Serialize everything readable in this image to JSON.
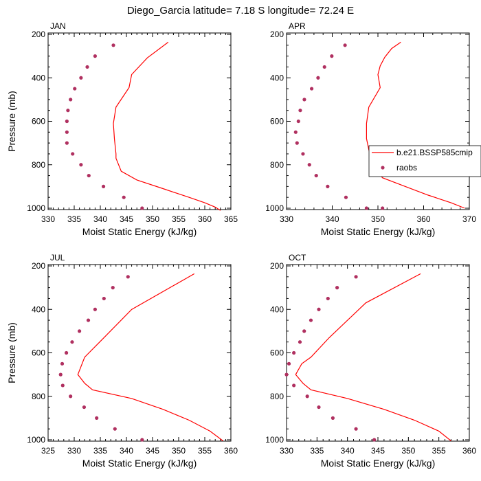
{
  "title": "Diego_Garcia  latitude= 7.18 S longitude= 72.24 E",
  "legend": {
    "line_label": "b.e21.BSSP585cmip",
    "dot_label": "raobs",
    "placement": "right side of APR panel"
  },
  "colors": {
    "model_line": "#ff0000",
    "raobs_dot": "#b03060",
    "axes": "#000000",
    "background": "#ffffff"
  },
  "chart_data": [
    {
      "type": "line",
      "title": "JAN",
      "xlabel": "Moist Static Energy (kJ/kg)",
      "ylabel": "Pressure (mb)",
      "xlim": [
        330,
        365
      ],
      "xticks": [
        330,
        335,
        340,
        345,
        350,
        355,
        360,
        365
      ],
      "ylim": [
        1000,
        200
      ],
      "yticks": [
        200,
        400,
        600,
        800,
        1000
      ],
      "grid": false,
      "series": [
        {
          "name": "b.e21.BSSP585cmip",
          "kind": "line",
          "x": [
            353,
            349,
            346,
            345.5,
            343,
            342.5,
            342.7,
            343,
            343,
            344,
            347,
            352,
            357,
            360,
            362,
            363
          ],
          "y": [
            236,
            308,
            385,
            445,
            535,
            610,
            680,
            750,
            770,
            830,
            870,
            910,
            950,
            975,
            995,
            1010
          ]
        },
        {
          "name": "raobs",
          "kind": "scatter",
          "x": [
            342.5,
            339,
            337.5,
            336.3,
            335.1,
            334.3,
            333.8,
            333.6,
            333.6,
            333.6,
            334.7,
            336.3,
            337.8,
            340.6,
            344.5,
            348
          ],
          "y": [
            250,
            300,
            350,
            400,
            450,
            500,
            550,
            600,
            650,
            700,
            750,
            800,
            850,
            900,
            950,
            1000
          ]
        }
      ]
    },
    {
      "type": "line",
      "title": "APR",
      "xlabel": "Moist Static Energy (kJ/kg)",
      "ylabel": "",
      "xlim": [
        330,
        370
      ],
      "xticks": [
        330,
        340,
        350,
        360,
        370
      ],
      "ylim": [
        1000,
        200
      ],
      "yticks": [
        200,
        400,
        600,
        800,
        1000
      ],
      "grid": false,
      "series": [
        {
          "name": "b.e21.BSSP585cmip",
          "kind": "line",
          "x": [
            355,
            353,
            351.5,
            350.5,
            350,
            350.5,
            348,
            347.5,
            347.5,
            348,
            348.5,
            349.5,
            351,
            356,
            361,
            366,
            369
          ],
          "y": [
            236,
            265,
            305,
            345,
            385,
            445,
            535,
            610,
            680,
            730,
            770,
            820,
            860,
            900,
            940,
            975,
            1000
          ]
        },
        {
          "name": "raobs",
          "kind": "scatter",
          "x": [
            342.8,
            339.9,
            338.3,
            336.9,
            335.5,
            333.9,
            333,
            332.6,
            332,
            332.3,
            333.6,
            335,
            336.5,
            339,
            343,
            347.5,
            351
          ],
          "y": [
            250,
            300,
            350,
            400,
            450,
            500,
            550,
            600,
            650,
            700,
            750,
            800,
            850,
            900,
            950,
            1000,
            1000
          ]
        }
      ]
    },
    {
      "type": "line",
      "title": "JUL",
      "xlabel": "Moist Static Energy (kJ/kg)",
      "ylabel": "Pressure (mb)",
      "xlim": [
        325,
        360
      ],
      "xticks": [
        325,
        330,
        335,
        340,
        345,
        350,
        355,
        360
      ],
      "ylim": [
        1000,
        200
      ],
      "yticks": [
        200,
        400,
        600,
        800,
        1000
      ],
      "grid": false,
      "series": [
        {
          "name": "b.e21.BSSP585cmip",
          "kind": "line",
          "x": [
            353,
            341,
            335.5,
            332,
            330.7,
            332,
            333.5,
            341,
            347,
            352,
            356,
            358.5
          ],
          "y": [
            236,
            400,
            535,
            620,
            700,
            740,
            770,
            810,
            860,
            910,
            960,
            1005
          ]
        },
        {
          "name": "raobs",
          "kind": "scatter",
          "x": [
            340.3,
            337.4,
            335.7,
            334,
            332.7,
            331,
            329.6,
            328.5,
            327.7,
            327.4,
            327.8,
            329.3,
            331.9,
            334.3,
            337.8,
            343
          ],
          "y": [
            250,
            300,
            350,
            400,
            450,
            500,
            550,
            600,
            650,
            700,
            750,
            800,
            850,
            900,
            950,
            1000
          ]
        }
      ]
    },
    {
      "type": "line",
      "title": "OCT",
      "xlabel": "Moist Static Energy (kJ/kg)",
      "ylabel": "",
      "xlim": [
        330,
        360
      ],
      "xticks": [
        330,
        335,
        340,
        345,
        350,
        355,
        360
      ],
      "ylim": [
        1000,
        200
      ],
      "yticks": [
        200,
        400,
        600,
        800,
        1000
      ],
      "grid": false,
      "series": [
        {
          "name": "b.e21.BSSP585cmip",
          "kind": "line",
          "x": [
            352,
            343,
            337,
            334,
            332.5,
            331.5,
            332.7,
            334,
            340,
            346,
            351,
            355,
            357
          ],
          "y": [
            236,
            370,
            530,
            620,
            650,
            700,
            740,
            770,
            810,
            860,
            910,
            960,
            1005
          ]
        },
        {
          "name": "raobs",
          "kind": "scatter",
          "x": [
            341.4,
            338.3,
            336.8,
            335.3,
            334,
            332.9,
            332.2,
            331.2,
            330.4,
            330,
            331.2,
            333.4,
            335.3,
            337.6,
            341.4,
            344.4
          ],
          "y": [
            250,
            300,
            350,
            400,
            450,
            500,
            550,
            600,
            650,
            700,
            750,
            800,
            850,
            900,
            950,
            1000
          ]
        }
      ]
    }
  ]
}
